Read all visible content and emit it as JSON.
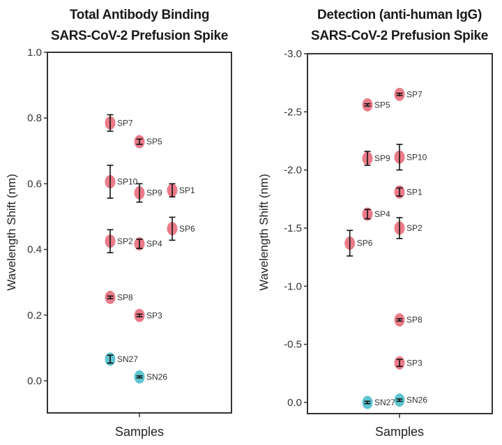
{
  "chart_data": [
    {
      "type": "scatter",
      "title": [
        "Total Antibody Binding",
        "SARS-CoV-2 Prefusion Spike"
      ],
      "xlabel": "Samples",
      "ylabel": "Wavelength Shift (nm)",
      "ylim": [
        -0.1,
        1.0
      ],
      "yticks": [
        1.0,
        0.8,
        0.6,
        0.4,
        0.2,
        0.0
      ],
      "ytick_labels": [
        "1.0",
        "0.8",
        "0.6",
        "0.4",
        "0.2",
        "0.0"
      ],
      "y_inverted": false,
      "grid": false,
      "colors": {
        "positive": "#e8707f",
        "negative": "#4fbfcc"
      },
      "points": [
        {
          "label": "SP7",
          "column": 0,
          "y": 0.785,
          "err": 0.025,
          "group": "positive"
        },
        {
          "label": "SP5",
          "column": 1,
          "y": 0.728,
          "err": 0.008,
          "group": "positive"
        },
        {
          "label": "SP10",
          "column": 0,
          "y": 0.606,
          "err": 0.05,
          "group": "positive"
        },
        {
          "label": "SP9",
          "column": 1,
          "y": 0.572,
          "err": 0.028,
          "group": "positive"
        },
        {
          "label": "SP1",
          "column": 2,
          "y": 0.58,
          "err": 0.02,
          "group": "positive"
        },
        {
          "label": "SP6",
          "column": 2,
          "y": 0.463,
          "err": 0.035,
          "group": "positive"
        },
        {
          "label": "SP2",
          "column": 0,
          "y": 0.425,
          "err": 0.035,
          "group": "positive"
        },
        {
          "label": "SP4",
          "column": 1,
          "y": 0.417,
          "err": 0.014,
          "group": "positive"
        },
        {
          "label": "SP8",
          "column": 0,
          "y": 0.254,
          "err": 0.004,
          "group": "positive"
        },
        {
          "label": "SP3",
          "column": 1,
          "y": 0.199,
          "err": 0.004,
          "group": "positive"
        },
        {
          "label": "SN27",
          "column": 0,
          "y": 0.066,
          "err": 0.012,
          "group": "negative"
        },
        {
          "label": "SN26",
          "column": 1,
          "y": 0.012,
          "err": 0.003,
          "group": "negative"
        }
      ]
    },
    {
      "type": "scatter",
      "title": [
        "Detection (anti-human IgG)",
        "SARS-CoV-2 Prefusion Spike"
      ],
      "xlabel": "Samples",
      "ylabel": "Wavelength Shift (nm)",
      "ylim": [
        0.05,
        -3.0
      ],
      "yticks": [
        -3.0,
        -2.5,
        -2.0,
        -1.5,
        -1.0,
        -0.5,
        0.0
      ],
      "ytick_labels": [
        "-3.0",
        "-2.5",
        "-2.0",
        "-1.5",
        "-1.0",
        "-0.5",
        "0.0"
      ],
      "y_inverted": true,
      "grid": false,
      "colors": {
        "positive": "#e8707f",
        "negative": "#4fbfcc"
      },
      "points": [
        {
          "label": "SP7",
          "column": 1,
          "y": -2.65,
          "err": 0.01,
          "group": "positive"
        },
        {
          "label": "SP5",
          "column": 0,
          "y": -2.56,
          "err": 0.01,
          "group": "positive"
        },
        {
          "label": "SP9",
          "column": 0,
          "y": -2.1,
          "err": 0.06,
          "group": "positive"
        },
        {
          "label": "SP10",
          "column": 1,
          "y": -2.11,
          "err": 0.11,
          "group": "positive"
        },
        {
          "label": "SP1",
          "column": 1,
          "y": -1.81,
          "err": 0.035,
          "group": "positive"
        },
        {
          "label": "SP4",
          "column": 0,
          "y": -1.62,
          "err": 0.04,
          "group": "positive"
        },
        {
          "label": "SP2",
          "column": 1,
          "y": -1.5,
          "err": 0.09,
          "group": "positive"
        },
        {
          "label": "SP6",
          "column": -0.55,
          "y": -1.37,
          "err": 0.11,
          "group": "positive"
        },
        {
          "label": "SP8",
          "column": 1,
          "y": -0.71,
          "err": 0.01,
          "group": "positive"
        },
        {
          "label": "SP3",
          "column": 1,
          "y": -0.34,
          "err": 0.03,
          "group": "positive"
        },
        {
          "label": "SN27",
          "column": 0,
          "y": 0.0,
          "err": 0.01,
          "group": "negative"
        },
        {
          "label": "SN26",
          "column": 1,
          "y": -0.02,
          "err": 0.01,
          "group": "negative"
        }
      ]
    }
  ]
}
